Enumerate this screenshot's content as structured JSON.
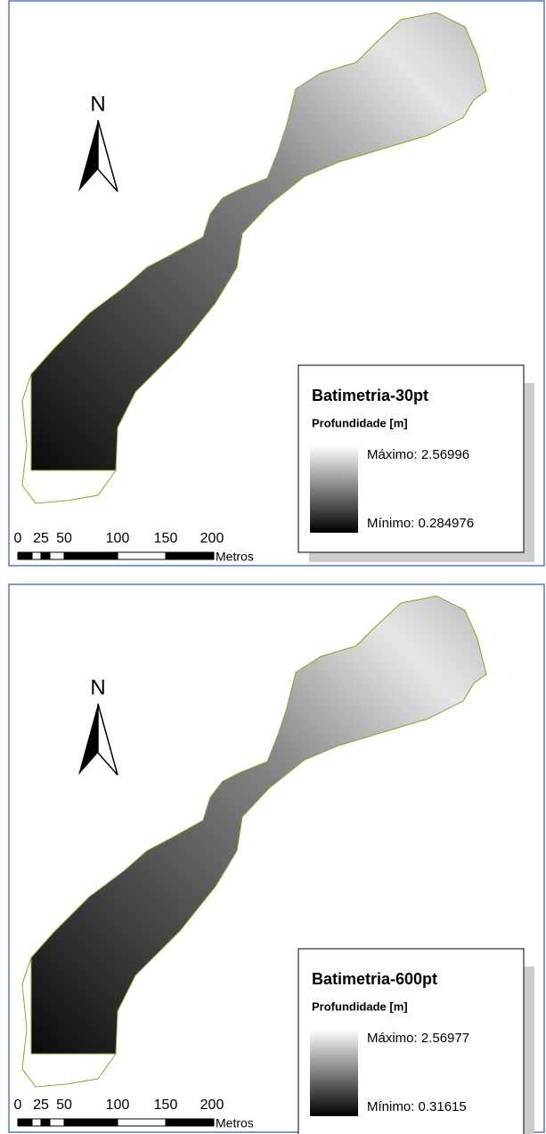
{
  "maps": [
    {
      "north": "N",
      "legend": {
        "title": "Batimetria-30pt",
        "subtitle": "Profundidade [m]",
        "max_label": "Máximo: 2.56996",
        "min_label": "Mínimo: 0.284976"
      },
      "scale": {
        "labels": [
          "0",
          "25",
          "50",
          "100",
          "150",
          "200"
        ],
        "unit": "Metros"
      }
    },
    {
      "north": "N",
      "legend": {
        "title": "Batimetria-600pt",
        "subtitle": "Profundidade [m]",
        "max_label": "Máximo: 2.56977",
        "min_label": "Mínimo: 0.31615"
      },
      "scale": {
        "labels": [
          "0",
          "25",
          "50",
          "100",
          "150",
          "200"
        ],
        "unit": "Metros"
      }
    }
  ]
}
